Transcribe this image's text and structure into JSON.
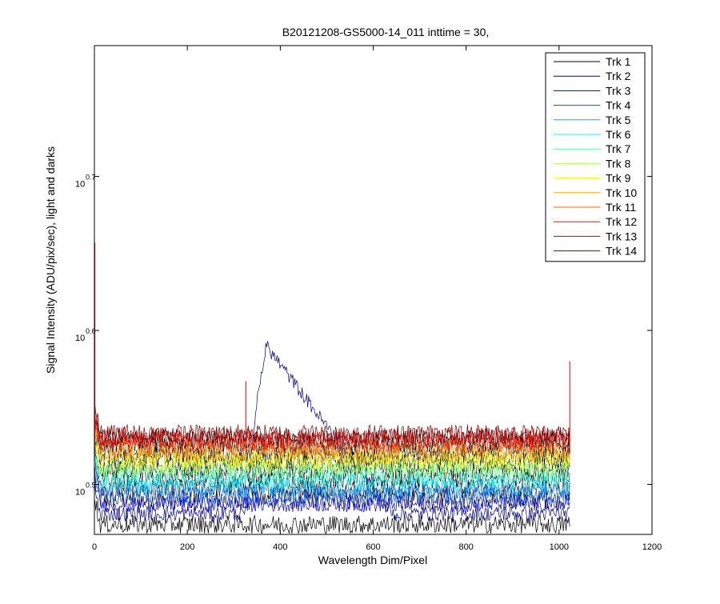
{
  "chart_data": {
    "type": "line",
    "title": "B20121208-GS5000-14_011 inttime = 30,",
    "xlabel": "Wavelength Dim/Pixel",
    "ylabel": "Signal Intensity (ADU/pix/sec), light and darks",
    "xlim": [
      0,
      1200
    ],
    "ylim_exponent": [
      0.4675,
      0.785
    ],
    "y_scale": "log",
    "x_ticks": [
      "0",
      "200",
      "400",
      "600",
      "800",
      "1000",
      "1200"
    ],
    "x_tick_values": [
      0,
      200,
      400,
      600,
      800,
      1000,
      1200
    ],
    "y_ticks": [
      {
        "base": "10",
        "exp": "0.5",
        "value": 0.5
      },
      {
        "base": "10",
        "exp": "0.6",
        "value": 0.6
      },
      {
        "base": "10",
        "exp": "0.7",
        "value": 0.7
      }
    ],
    "grid": false,
    "legend_position": "top-right",
    "x_range_data": [
      1,
      1024
    ],
    "series": [
      {
        "name": "Trk 1",
        "color": "#000000",
        "level": 0.474,
        "noise": 0.006
      },
      {
        "name": "Trk 2",
        "color": "#00008F",
        "level": 0.481,
        "noise": 0.005,
        "hump": {
          "start": 330,
          "peak_x": 370,
          "peak": 0.59,
          "end": 640
        }
      },
      {
        "name": "Trk 3",
        "color": "#0000DF",
        "level": 0.487,
        "noise": 0.005
      },
      {
        "name": "Trk 4",
        "color": "#0050FF",
        "level": 0.493,
        "noise": 0.006
      },
      {
        "name": "Trk 5",
        "color": "#00AFFF",
        "level": 0.498,
        "noise": 0.006
      },
      {
        "name": "Trk 6",
        "color": "#10FFEF",
        "level": 0.503,
        "noise": 0.006
      },
      {
        "name": "Trk 7",
        "color": "#60FFA0",
        "level": 0.508,
        "noise": 0.006
      },
      {
        "name": "Trk 8",
        "color": "#AFFF50",
        "level": 0.512,
        "noise": 0.006
      },
      {
        "name": "Trk 9",
        "color": "#FFFF00",
        "level": 0.516,
        "noise": 0.006
      },
      {
        "name": "Trk 10",
        "color": "#FFAF00",
        "level": 0.52,
        "noise": 0.006
      },
      {
        "name": "Trk 11",
        "color": "#FF6000",
        "level": 0.524,
        "noise": 0.006
      },
      {
        "name": "Trk 12",
        "color": "#FF1000",
        "level": 0.528,
        "noise": 0.006
      },
      {
        "name": "Trk 13",
        "color": "#C00000",
        "level": 0.531,
        "noise": 0.006
      },
      {
        "name": "Trk 14",
        "color": "#800000",
        "level": 0.533,
        "noise": 0.006
      }
    ],
    "dark_series_levels": [
      0.49,
      0.497,
      0.504,
      0.51,
      0.515,
      0.52,
      0.525,
      0.529
    ],
    "spikes": [
      {
        "x": 1,
        "value": 0.657,
        "color": "#FF0000"
      },
      {
        "x": 326,
        "value": 0.567,
        "color": "#FF0000"
      },
      {
        "x": 1023,
        "value": 0.58,
        "color": "#FF0000"
      }
    ]
  }
}
